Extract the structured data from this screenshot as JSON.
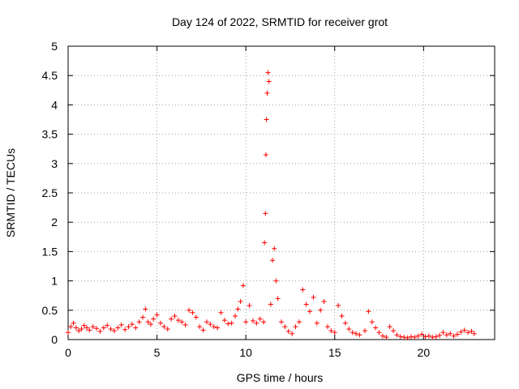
{
  "chart_data": {
    "type": "scatter",
    "title": "Day 124 of 2022, SRMTID for receiver grot",
    "xlabel": "GPS time / hours",
    "ylabel": "SRMTID / TECUs",
    "xlim": [
      0,
      24
    ],
    "ylim": [
      0,
      5
    ],
    "xticks": [
      0,
      5,
      10,
      15,
      20
    ],
    "xtick_labels": [
      "0",
      "5",
      "10",
      "15",
      "20"
    ],
    "yticks": [
      0,
      0.5,
      1,
      1.5,
      2,
      2.5,
      3,
      3.5,
      4,
      4.5,
      5
    ],
    "ytick_labels": [
      "0",
      "0.5",
      "1",
      "1.5",
      "2",
      "2.5",
      "3",
      "3.5",
      "4",
      "4.5",
      "5"
    ],
    "grid": true,
    "marker": "+",
    "color": "#ff0000",
    "series": [
      {
        "name": "SRMTID",
        "x": [
          0.0,
          0.15,
          0.3,
          0.45,
          0.6,
          0.75,
          0.9,
          1.05,
          1.2,
          1.4,
          1.6,
          1.8,
          2.0,
          2.2,
          2.4,
          2.6,
          2.8,
          3.0,
          3.2,
          3.4,
          3.6,
          3.8,
          4.0,
          4.2,
          4.35,
          4.5,
          4.65,
          4.8,
          5.0,
          5.2,
          5.4,
          5.6,
          5.8,
          6.0,
          6.2,
          6.4,
          6.6,
          6.8,
          7.0,
          7.2,
          7.4,
          7.6,
          7.8,
          8.0,
          8.2,
          8.4,
          8.6,
          8.8,
          9.0,
          9.2,
          9.4,
          9.55,
          9.7,
          9.85,
          10.0,
          10.2,
          10.4,
          10.6,
          10.8,
          11.0,
          11.05,
          11.1,
          11.13,
          11.16,
          11.2,
          11.25,
          11.3,
          11.4,
          11.5,
          11.6,
          11.7,
          11.8,
          12.0,
          12.2,
          12.4,
          12.6,
          12.8,
          13.0,
          13.2,
          13.4,
          13.6,
          13.8,
          14.0,
          14.2,
          14.4,
          14.6,
          14.8,
          15.0,
          15.2,
          15.4,
          15.6,
          15.8,
          16.0,
          16.2,
          16.4,
          16.7,
          16.9,
          17.1,
          17.3,
          17.5,
          17.7,
          17.9,
          18.1,
          18.3,
          18.5,
          18.7,
          18.9,
          19.1,
          19.3,
          19.5,
          19.7,
          19.9,
          20.1,
          20.3,
          20.5,
          20.7,
          20.9,
          21.1,
          21.3,
          21.5,
          21.7,
          21.9,
          22.1,
          22.3,
          22.5,
          22.7,
          22.85
        ],
        "y": [
          0.12,
          0.22,
          0.28,
          0.2,
          0.15,
          0.18,
          0.24,
          0.2,
          0.16,
          0.22,
          0.19,
          0.14,
          0.2,
          0.24,
          0.18,
          0.15,
          0.2,
          0.25,
          0.17,
          0.22,
          0.26,
          0.2,
          0.3,
          0.38,
          0.52,
          0.3,
          0.26,
          0.35,
          0.42,
          0.28,
          0.22,
          0.18,
          0.35,
          0.4,
          0.33,
          0.3,
          0.25,
          0.5,
          0.46,
          0.38,
          0.22,
          0.16,
          0.3,
          0.26,
          0.22,
          0.2,
          0.46,
          0.33,
          0.27,
          0.28,
          0.4,
          0.52,
          0.65,
          0.92,
          0.3,
          0.58,
          0.32,
          0.28,
          0.35,
          0.3,
          1.65,
          2.15,
          3.15,
          3.75,
          4.2,
          4.55,
          4.4,
          0.6,
          1.35,
          1.55,
          1.0,
          0.7,
          0.3,
          0.22,
          0.14,
          0.1,
          0.22,
          0.3,
          0.85,
          0.6,
          0.48,
          0.72,
          0.28,
          0.5,
          0.65,
          0.22,
          0.15,
          0.12,
          0.58,
          0.4,
          0.28,
          0.18,
          0.12,
          0.1,
          0.08,
          0.15,
          0.48,
          0.3,
          0.2,
          0.12,
          0.06,
          0.04,
          0.22,
          0.15,
          0.08,
          0.05,
          0.04,
          0.03,
          0.05,
          0.04,
          0.06,
          0.09,
          0.05,
          0.06,
          0.04,
          0.05,
          0.07,
          0.12,
          0.08,
          0.1,
          0.06,
          0.09,
          0.13,
          0.16,
          0.12,
          0.14,
          0.1
        ]
      }
    ]
  }
}
